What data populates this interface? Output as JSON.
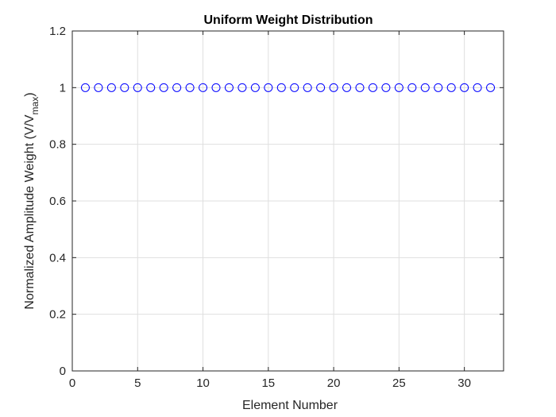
{
  "chart_data": {
    "type": "scatter",
    "title": "Uniform Weight Distribution",
    "xlabel": "Element Number",
    "ylabel_main": "Normalized Amplitude Weight (V/V",
    "ylabel_sub": "max",
    "ylabel_close": ")",
    "xlim": [
      0,
      33
    ],
    "ylim": [
      0,
      1.2
    ],
    "xticks": [
      0,
      5,
      10,
      15,
      20,
      25,
      30
    ],
    "xtick_labels": [
      "0",
      "5",
      "10",
      "15",
      "20",
      "25",
      "30"
    ],
    "yticks": [
      0,
      0.2,
      0.4,
      0.6,
      0.8,
      1,
      1.2
    ],
    "ytick_labels": [
      "0",
      "0.2",
      "0.4",
      "0.6",
      "0.8",
      "1",
      "1.2"
    ],
    "grid": true,
    "marker": "circle",
    "color": "#0000ff",
    "x": [
      1,
      2,
      3,
      4,
      5,
      6,
      7,
      8,
      9,
      10,
      11,
      12,
      13,
      14,
      15,
      16,
      17,
      18,
      19,
      20,
      21,
      22,
      23,
      24,
      25,
      26,
      27,
      28,
      29,
      30,
      31,
      32
    ],
    "y": [
      1,
      1,
      1,
      1,
      1,
      1,
      1,
      1,
      1,
      1,
      1,
      1,
      1,
      1,
      1,
      1,
      1,
      1,
      1,
      1,
      1,
      1,
      1,
      1,
      1,
      1,
      1,
      1,
      1,
      1,
      1,
      1
    ]
  }
}
